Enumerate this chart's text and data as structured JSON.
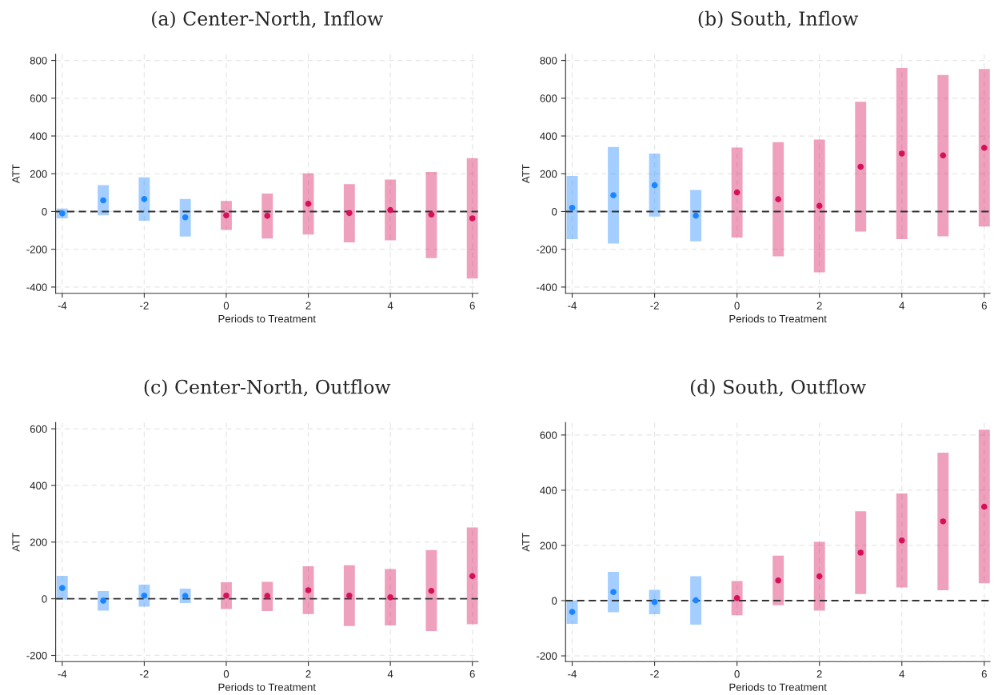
{
  "chart_data": [
    {
      "type": "scatter",
      "title": "(a) Center-North, Inflow",
      "xlabel": "Periods to Treatment",
      "ylabel": "ATT",
      "xlim": [
        -4.16,
        6.14
      ],
      "xticks": [
        -4,
        -2,
        0,
        2,
        4,
        6
      ],
      "ylim": [
        -433,
        833
      ],
      "yticks": [
        -400,
        -200,
        0,
        200,
        400,
        600,
        800
      ],
      "grid": true,
      "legend": false,
      "marker": "circle",
      "ref_lines": [
        {
          "axis": "y",
          "value": 0,
          "color": "#333333",
          "line_style": "dashed"
        }
      ],
      "series": [
        {
          "color": "#1a85ff",
          "x": [
            -4,
            -3,
            -2,
            -1
          ],
          "values": [
            -10,
            59,
            66,
            -31
          ],
          "errors": [
            [
              -36,
              16
            ],
            [
              -20,
              140
            ],
            [
              -49,
              181
            ],
            [
              -132,
              67
            ]
          ]
        },
        {
          "color": "#d41159",
          "x": [
            0,
            1,
            2,
            3,
            4,
            5,
            6
          ],
          "values": [
            -20,
            -23,
            41,
            -8,
            8,
            -16,
            -36
          ],
          "errors": [
            [
              -97,
              56
            ],
            [
              -143,
              95
            ],
            [
              -122,
              202
            ],
            [
              -163,
              145
            ],
            [
              -153,
              169
            ],
            [
              -247,
              210
            ],
            [
              -355,
              283
            ]
          ]
        }
      ]
    },
    {
      "type": "scatter",
      "title": "(b) South, Inflow",
      "xlabel": "Periods to Treatment",
      "ylabel": "ATT",
      "xlim": [
        -4.16,
        6.14
      ],
      "xticks": [
        -4,
        -2,
        0,
        2,
        4,
        6
      ],
      "ylim": [
        -433,
        833
      ],
      "yticks": [
        -400,
        -200,
        0,
        200,
        400,
        600,
        800
      ],
      "grid": true,
      "legend": false,
      "marker": "circle",
      "ref_lines": [
        {
          "axis": "y",
          "value": 0,
          "color": "#333333",
          "line_style": "dashed"
        }
      ],
      "series": [
        {
          "color": "#1a85ff",
          "x": [
            -4,
            -3,
            -2,
            -1
          ],
          "values": [
            20,
            86,
            139,
            -22
          ],
          "errors": [
            [
              -146,
              188
            ],
            [
              -169,
              342
            ],
            [
              -27,
              307
            ],
            [
              -158,
              114
            ]
          ]
        },
        {
          "color": "#d41159",
          "x": [
            0,
            1,
            2,
            3,
            4,
            5,
            6
          ],
          "values": [
            101,
            65,
            30,
            237,
            307,
            297,
            337
          ],
          "errors": [
            [
              -138,
              339
            ],
            [
              -237,
              367
            ],
            [
              -322,
              381
            ],
            [
              -106,
              581
            ],
            [
              -146,
              760
            ],
            [
              -131,
              723
            ],
            [
              -79,
              755
            ]
          ]
        }
      ]
    },
    {
      "type": "scatter",
      "title": "(c) Center-North, Outflow",
      "xlabel": "Periods to Treatment",
      "ylabel": "ATT",
      "xlim": [
        -4.16,
        6.14
      ],
      "xticks": [
        -4,
        -2,
        0,
        2,
        4,
        6
      ],
      "ylim": [
        -222,
        622
      ],
      "yticks": [
        -200,
        0,
        200,
        400,
        600
      ],
      "grid": true,
      "legend": false,
      "marker": "circle",
      "ref_lines": [
        {
          "axis": "y",
          "value": 0,
          "color": "#333333",
          "line_style": "dashed"
        }
      ],
      "series": [
        {
          "color": "#1a85ff",
          "x": [
            -4,
            -3,
            -2,
            -1
          ],
          "values": [
            38,
            -7,
            11,
            10
          ],
          "errors": [
            [
              -3,
              81
            ],
            [
              -42,
              27
            ],
            [
              -28,
              50
            ],
            [
              -15,
              36
            ]
          ]
        },
        {
          "color": "#d41159",
          "x": [
            0,
            1,
            2,
            3,
            4,
            5,
            6
          ],
          "values": [
            11,
            10,
            30,
            11,
            5,
            28,
            80
          ],
          "errors": [
            [
              -36,
              58
            ],
            [
              -43,
              60
            ],
            [
              -54,
              115
            ],
            [
              -96,
              118
            ],
            [
              -94,
              105
            ],
            [
              -114,
              172
            ],
            [
              -90,
              252
            ]
          ]
        }
      ]
    },
    {
      "type": "scatter",
      "title": "(d) South, Outflow",
      "xlabel": "Periods to Treatment",
      "ylabel": "ATT",
      "xlim": [
        -4.16,
        6.14
      ],
      "xticks": [
        -4,
        -2,
        0,
        2,
        4,
        6
      ],
      "ylim": [
        -221,
        645
      ],
      "yticks": [
        -200,
        0,
        200,
        400,
        600
      ],
      "grid": true,
      "legend": false,
      "marker": "circle",
      "ref_lines": [
        {
          "axis": "y",
          "value": 0,
          "color": "#333333",
          "line_style": "dashed"
        }
      ],
      "series": [
        {
          "color": "#1a85ff",
          "x": [
            -4,
            -3,
            -2,
            -1
          ],
          "values": [
            -41,
            31,
            -5,
            1
          ],
          "errors": [
            [
              -84,
              0
            ],
            [
              -42,
              104
            ],
            [
              -49,
              39
            ],
            [
              -87,
              88
            ]
          ]
        },
        {
          "color": "#d41159",
          "x": [
            0,
            1,
            2,
            3,
            4,
            5,
            6
          ],
          "values": [
            9,
            73,
            88,
            174,
            218,
            287,
            340
          ],
          "errors": [
            [
              -53,
              71
            ],
            [
              -17,
              163
            ],
            [
              -36,
              213
            ],
            [
              24,
              324
            ],
            [
              48,
              388
            ],
            [
              38,
              536
            ],
            [
              63,
              619
            ]
          ]
        }
      ]
    }
  ]
}
